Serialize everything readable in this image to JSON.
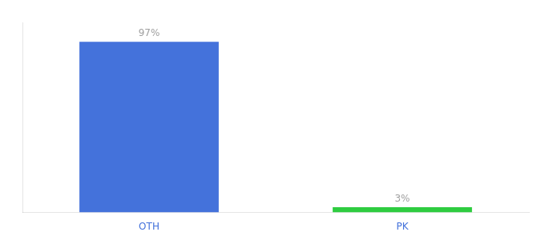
{
  "chart_data": {
    "type": "bar",
    "categories": [
      "OTH",
      "PK"
    ],
    "values": [
      97,
      3
    ],
    "value_labels": [
      "97%",
      "3%"
    ],
    "colors": [
      "#4472db",
      "#2ecc40"
    ],
    "ylim": [
      0,
      108
    ],
    "tick_labels": "x",
    "grid": false,
    "data_labels": true
  }
}
